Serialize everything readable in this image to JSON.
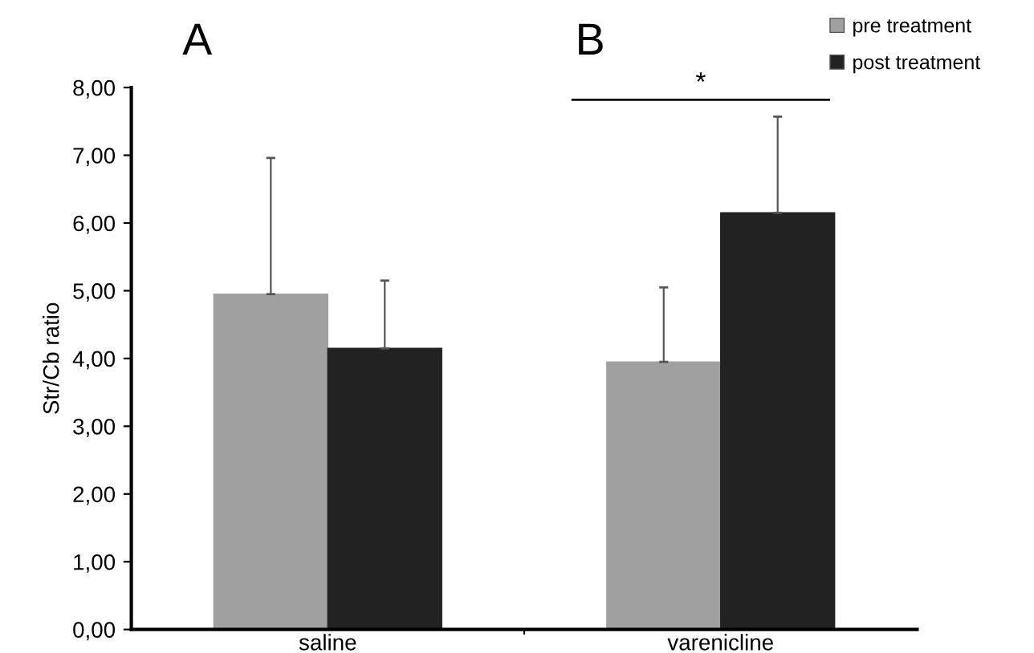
{
  "chart_data": {
    "type": "bar",
    "ylabel": "Str/Cb ratio",
    "categories": [
      "saline",
      "varenicline"
    ],
    "series": [
      {
        "name": "pre treatment",
        "color": "#a0a0a0",
        "values": [
          4.95,
          3.95
        ],
        "errors": [
          [
            4.95,
            6.96
          ],
          [
            3.95,
            5.05
          ]
        ]
      },
      {
        "name": "post treatment",
        "color": "#222222",
        "values": [
          4.15,
          6.15
        ],
        "errors": [
          [
            4.15,
            5.15
          ],
          [
            6.15,
            7.57
          ]
        ]
      }
    ],
    "ylim": [
      0,
      8
    ],
    "yticks": [
      {
        "value": 0,
        "label": "0,00"
      },
      {
        "value": 1,
        "label": "1,00"
      },
      {
        "value": 2,
        "label": "2,00"
      },
      {
        "value": 3,
        "label": "3,00"
      },
      {
        "value": 4,
        "label": "4,00"
      },
      {
        "value": 5,
        "label": "5,00"
      },
      {
        "value": 6,
        "label": "6,00"
      },
      {
        "value": 7,
        "label": "7,00"
      },
      {
        "value": 8,
        "label": "8,00"
      }
    ],
    "annotations": [
      "A",
      "B",
      "*"
    ],
    "legend": "top right",
    "grid": false
  }
}
